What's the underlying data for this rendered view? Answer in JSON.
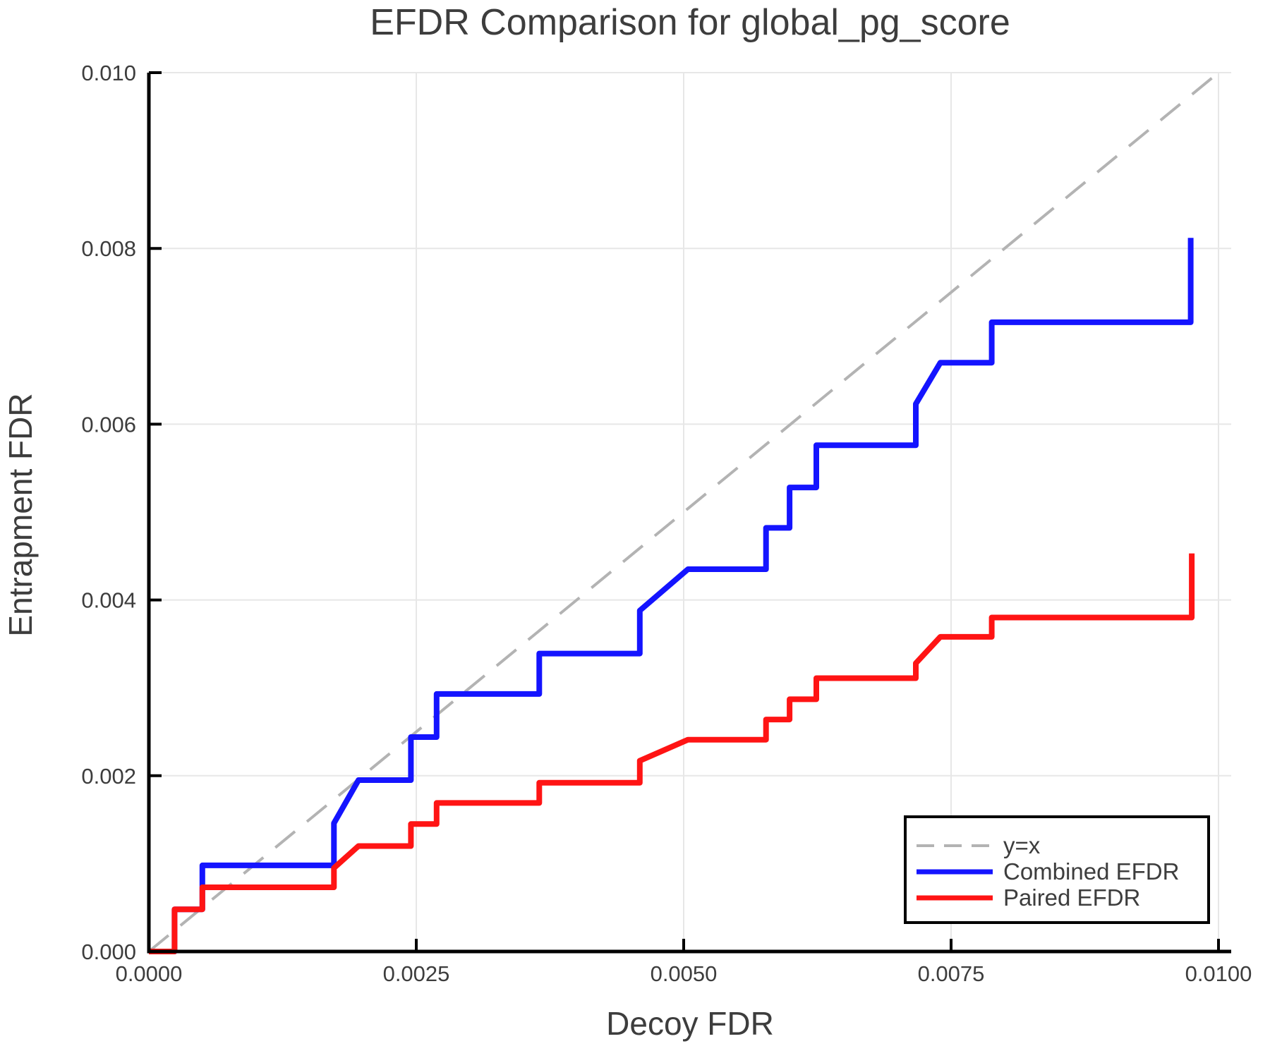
{
  "chart_data": {
    "type": "line",
    "title": "EFDR Comparison for global_pg_score",
    "xlabel": "Decoy FDR",
    "ylabel": "Entrapment FDR",
    "xlim": [
      0,
      0.0101
    ],
    "ylim": [
      0,
      0.01
    ],
    "grid": true,
    "background": "#ffffff",
    "grid_color": "#e7e7e7",
    "spine_color": "#000000",
    "text_color": "#3d3d3d",
    "x_ticks": [
      {
        "value": 0.0,
        "label": "0.0000"
      },
      {
        "value": 0.0025,
        "label": "0.0025"
      },
      {
        "value": 0.005,
        "label": "0.0050"
      },
      {
        "value": 0.0075,
        "label": "0.0075"
      },
      {
        "value": 0.01,
        "label": "0.0100"
      }
    ],
    "y_ticks": [
      {
        "value": 0.0,
        "label": "0.000"
      },
      {
        "value": 0.002,
        "label": "0.002"
      },
      {
        "value": 0.004,
        "label": "0.004"
      },
      {
        "value": 0.006,
        "label": "0.006"
      },
      {
        "value": 0.008,
        "label": "0.008"
      },
      {
        "value": 0.01,
        "label": "0.010"
      }
    ],
    "legend": {
      "position": "lower right",
      "items": [
        {
          "label": "y=x",
          "color": "#b3b3b3",
          "style": "dashed"
        },
        {
          "label": "Combined EFDR",
          "color": "#1414ff",
          "style": "solid"
        },
        {
          "label": "Paired EFDR",
          "color": "#ff1414",
          "style": "solid"
        }
      ]
    },
    "series": [
      {
        "name": "y=x",
        "color": "#b3b3b3",
        "style": "dashed",
        "width": 4,
        "points": [
          [
            0,
            0
          ],
          [
            0.01,
            0.01
          ]
        ]
      },
      {
        "name": "Combined EFDR",
        "color": "#1414ff",
        "style": "solid",
        "width": 8,
        "points": [
          [
            0,
            0
          ],
          [
            0.00024,
            0
          ],
          [
            0.00024,
            0.00048
          ],
          [
            0.0005,
            0.00048
          ],
          [
            0.0005,
            0.00098
          ],
          [
            0.00173,
            0.00098
          ],
          [
            0.00173,
            0.00146
          ],
          [
            0.00196,
            0.00195
          ],
          [
            0.00245,
            0.00195
          ],
          [
            0.00245,
            0.00244
          ],
          [
            0.00269,
            0.00244
          ],
          [
            0.00269,
            0.00293
          ],
          [
            0.00365,
            0.00293
          ],
          [
            0.00365,
            0.00339
          ],
          [
            0.00459,
            0.00339
          ],
          [
            0.00459,
            0.00388
          ],
          [
            0.00504,
            0.00435
          ],
          [
            0.00577,
            0.00435
          ],
          [
            0.00577,
            0.00482
          ],
          [
            0.00599,
            0.00482
          ],
          [
            0.00599,
            0.00528
          ],
          [
            0.00624,
            0.00528
          ],
          [
            0.00624,
            0.00576
          ],
          [
            0.00717,
            0.00576
          ],
          [
            0.00717,
            0.00623
          ],
          [
            0.0074,
            0.0067
          ],
          [
            0.00788,
            0.0067
          ],
          [
            0.00788,
            0.00716
          ],
          [
            0.00974,
            0.00716
          ],
          [
            0.00974,
            0.00812
          ]
        ]
      },
      {
        "name": "Paired EFDR",
        "color": "#ff1414",
        "style": "solid",
        "width": 8,
        "points": [
          [
            0,
            0
          ],
          [
            0.00024,
            0
          ],
          [
            0.00024,
            0.00048
          ],
          [
            0.0005,
            0.00048
          ],
          [
            0.0005,
            0.00073
          ],
          [
            0.00173,
            0.00073
          ],
          [
            0.00173,
            0.00095
          ],
          [
            0.00196,
            0.0012
          ],
          [
            0.00245,
            0.0012
          ],
          [
            0.00245,
            0.00145
          ],
          [
            0.00269,
            0.00145
          ],
          [
            0.00269,
            0.00169
          ],
          [
            0.00365,
            0.00169
          ],
          [
            0.00365,
            0.00192
          ],
          [
            0.00459,
            0.00192
          ],
          [
            0.00459,
            0.00217
          ],
          [
            0.00504,
            0.00241
          ],
          [
            0.00577,
            0.00241
          ],
          [
            0.00577,
            0.00264
          ],
          [
            0.00599,
            0.00264
          ],
          [
            0.00599,
            0.00287
          ],
          [
            0.00624,
            0.00287
          ],
          [
            0.00624,
            0.00311
          ],
          [
            0.00717,
            0.00311
          ],
          [
            0.00717,
            0.00328
          ],
          [
            0.0074,
            0.00358
          ],
          [
            0.00788,
            0.00358
          ],
          [
            0.00788,
            0.0038
          ],
          [
            0.00975,
            0.0038
          ],
          [
            0.00975,
            0.00453
          ]
        ]
      }
    ]
  }
}
